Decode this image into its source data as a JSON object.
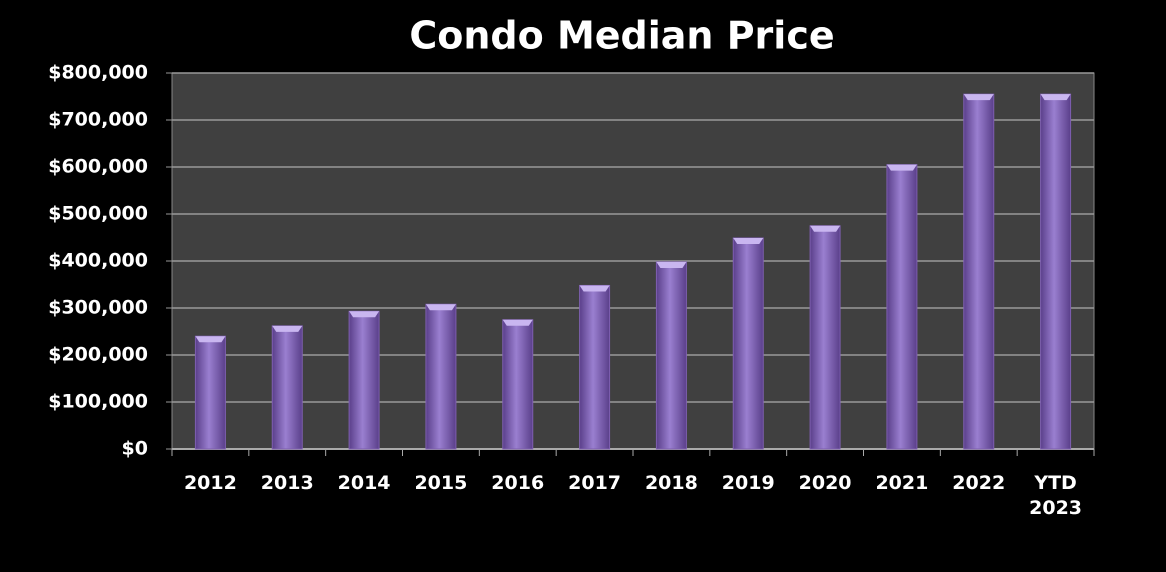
{
  "chart_data": {
    "type": "bar",
    "title": "Condo Median Price",
    "categories": [
      "2012",
      "2013",
      "2014",
      "2015",
      "2016",
      "2017",
      "2018",
      "2019",
      "2020",
      "2021",
      "2022",
      "YTD 2023"
    ],
    "values": [
      240000,
      262000,
      293000,
      308000,
      275000,
      348000,
      398000,
      449000,
      475000,
      605000,
      755000,
      755000
    ],
    "color": "#7e5fb0",
    "ylim": [
      0,
      800000
    ],
    "yticks": [
      {
        "value": 0,
        "label": "$0"
      },
      {
        "value": 100000,
        "label": "$100,000"
      },
      {
        "value": 200000,
        "label": "$200,000"
      },
      {
        "value": 300000,
        "label": "$300,000"
      },
      {
        "value": 400000,
        "label": "$400,000"
      },
      {
        "value": 500000,
        "label": "$500,000"
      },
      {
        "value": 600000,
        "label": "$600,000"
      },
      {
        "value": 700000,
        "label": "$700,000"
      },
      {
        "value": 800000,
        "label": "$800,000"
      }
    ],
    "grid": true
  }
}
